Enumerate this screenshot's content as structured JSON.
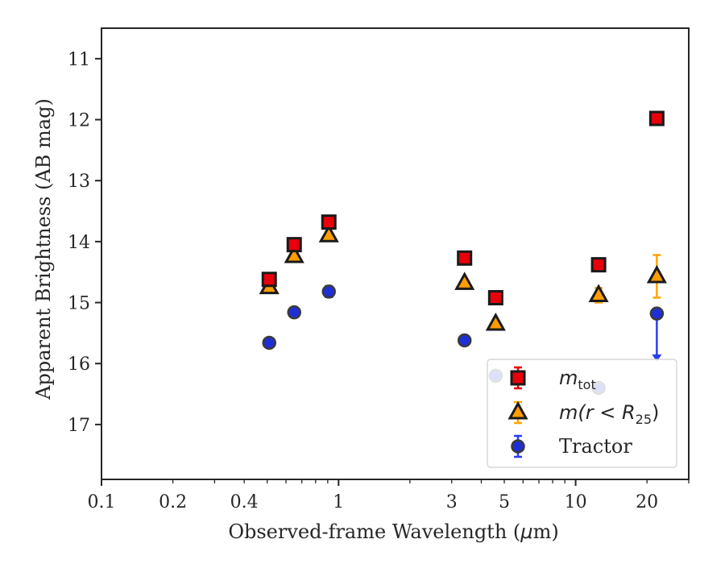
{
  "chart_data": {
    "type": "scatter",
    "xscale": "log",
    "xlim": [
      0.1,
      30
    ],
    "ylim": [
      17.9,
      10.5
    ],
    "y_inverted": true,
    "grid": false,
    "legend_position": "lower-right",
    "xlabel_parts": [
      "Observed-frame Wavelength (",
      "μ",
      "m)"
    ],
    "ylabel": "Apparent Brightness (AB mag)",
    "xticks": [
      {
        "value": 0.1,
        "label": "0.1"
      },
      {
        "value": 0.2,
        "label": "0.2"
      },
      {
        "value": 0.4,
        "label": "0.4"
      },
      {
        "value": 1,
        "label": "1"
      },
      {
        "value": 3,
        "label": "3"
      },
      {
        "value": 5,
        "label": "5"
      },
      {
        "value": 10,
        "label": "10"
      },
      {
        "value": 20,
        "label": "20"
      }
    ],
    "yticks": [
      11,
      12,
      13,
      14,
      15,
      16,
      17
    ],
    "series": [
      {
        "name": "m_tot",
        "marker": "square",
        "color": "#e8000b",
        "errcolor": "#e8000b",
        "points": [
          {
            "x": 0.51,
            "y": 14.62,
            "err": 0.05
          },
          {
            "x": 0.65,
            "y": 14.05,
            "err": 0.05
          },
          {
            "x": 0.91,
            "y": 13.68,
            "err": 0.05
          },
          {
            "x": 3.4,
            "y": 14.27,
            "err": 0.05
          },
          {
            "x": 4.6,
            "y": 14.92,
            "err": 0.05
          },
          {
            "x": 12.5,
            "y": 14.38,
            "err": 0.05
          },
          {
            "x": 22.0,
            "y": 11.98,
            "err": 0.05
          }
        ]
      },
      {
        "name": "m(r < R25)",
        "marker": "triangle",
        "color": "#ff9d00",
        "errcolor": "#ffa500",
        "points": [
          {
            "x": 0.51,
            "y": 14.75,
            "err": 0.05
          },
          {
            "x": 0.65,
            "y": 14.24,
            "err": 0.05
          },
          {
            "x": 0.91,
            "y": 13.9,
            "err": 0.05
          },
          {
            "x": 3.4,
            "y": 14.68,
            "err": 0.05
          },
          {
            "x": 4.6,
            "y": 15.35,
            "err": 0.05
          },
          {
            "x": 12.5,
            "y": 14.88,
            "err": 0.12
          },
          {
            "x": 22.0,
            "y": 14.57,
            "err": 0.35
          }
        ]
      },
      {
        "name": "Tractor",
        "marker": "circle",
        "color": "#1f2fd6",
        "errcolor": "#2b3cf0",
        "points": [
          {
            "x": 0.51,
            "y": 15.66,
            "err": 0.07
          },
          {
            "x": 0.65,
            "y": 15.16,
            "err": 0.08
          },
          {
            "x": 0.91,
            "y": 14.82,
            "err": 0.09
          },
          {
            "x": 3.4,
            "y": 15.62,
            "err": 0.08
          },
          {
            "x": 4.6,
            "y": 16.2,
            "err": 0.05
          },
          {
            "x": 12.5,
            "y": 16.4,
            "err": 0.05
          },
          {
            "x": 22.0,
            "y": 15.18,
            "err_down": 0.75,
            "err_up": 0.05,
            "lower_limit_arrow": true
          }
        ]
      }
    ],
    "legend": {
      "entries": [
        {
          "label_main": "m",
          "label_sub": "tot"
        },
        {
          "label_main": "m(r < R",
          "label_sub": "25",
          "label_tail": ")"
        },
        {
          "label_main": "Tractor"
        }
      ]
    }
  }
}
